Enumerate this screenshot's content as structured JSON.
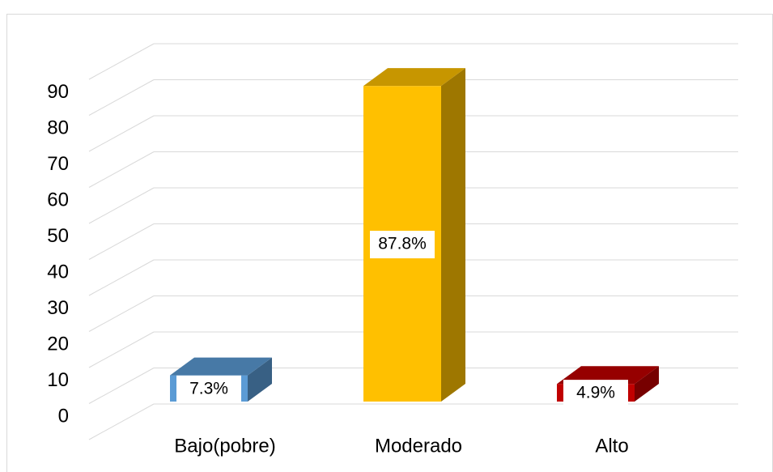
{
  "chart_data": {
    "type": "bar3d",
    "categories": [
      "Bajo(pobre)",
      "Moderado",
      "Alto"
    ],
    "values": [
      7.3,
      87.8,
      4.9
    ],
    "value_labels": [
      "7.3%",
      "87.8%",
      "4.9%"
    ],
    "colors": [
      "#5b9bd5",
      "#ffc000",
      "#c00000"
    ],
    "ylim": [
      0,
      100
    ],
    "yticks": [
      0,
      10,
      20,
      30,
      40,
      50,
      60,
      70,
      80,
      90
    ],
    "grid": true
  }
}
